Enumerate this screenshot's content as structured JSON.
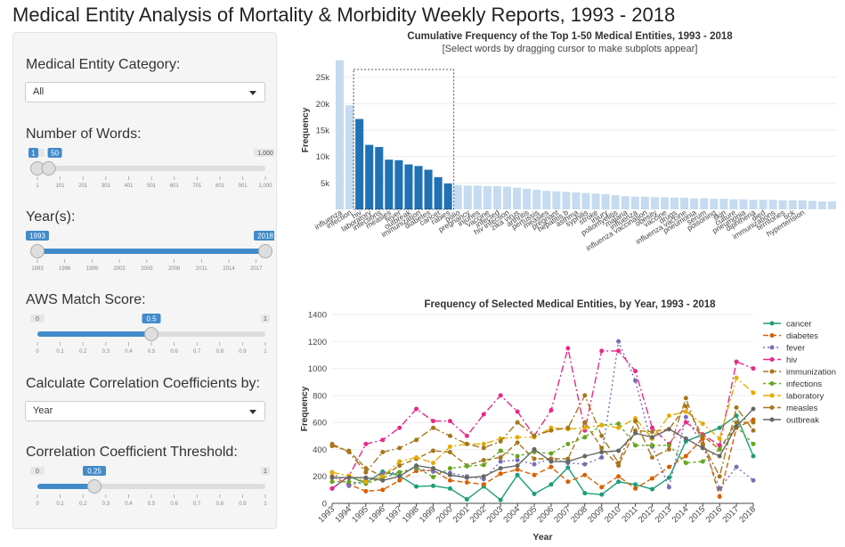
{
  "page_title": "Medical Entity Analysis of Mortality & Morbidity Weekly Reports, 1993 - 2018",
  "sidebar": {
    "category": {
      "label": "Medical Entity Category:",
      "value": "All"
    },
    "num_words": {
      "label": "Number of Words:",
      "min": 1,
      "max": 1000,
      "from": 1,
      "to": 50,
      "min_label": "1",
      "max_label": "1,000",
      "from_label": "1",
      "to_label": "50",
      "ticks": [
        "1",
        "101",
        "201",
        "301",
        "401",
        "501",
        "601",
        "701",
        "801",
        "901",
        "1,000"
      ]
    },
    "years": {
      "label": "Year(s):",
      "min": 1993,
      "max": 2018,
      "from": 1993,
      "to": 2018,
      "from_label": "1993",
      "to_label": "2018",
      "ticks": [
        "1993",
        "1996",
        "1999",
        "2002",
        "2005",
        "2008",
        "2011",
        "2014",
        "2017"
      ]
    },
    "aws": {
      "label": "AWS Match Score:",
      "min": 0,
      "max": 1,
      "value": 0.5,
      "min_label": "0",
      "max_label": "1",
      "value_label": "0.5",
      "ticks": [
        "0",
        "0.1",
        "0.2",
        "0.3",
        "0.4",
        "0.5",
        "0.6",
        "0.7",
        "0.8",
        "0.9",
        "1"
      ]
    },
    "corr_by": {
      "label": "Calculate Correlation Coefficients by:",
      "value": "Year"
    },
    "threshold": {
      "label": "Correlation Coefficient Threshold:",
      "min": 0,
      "max": 1,
      "value": 0.25,
      "min_label": "0",
      "max_label": "1",
      "value_label": "0.25",
      "ticks": [
        "0",
        "0.1",
        "0.2",
        "0.3",
        "0.4",
        "0.5",
        "0.6",
        "0.7",
        "0.8",
        "0.9",
        "1"
      ]
    },
    "colors": {
      "accent": "#428bca",
      "track": "#dddddd",
      "handle": "#dedede",
      "badge_gray": "#999999"
    }
  },
  "chart_data": [
    {
      "type": "bar",
      "title": "Cumulative Frequency of the Top 1-50 Medical Entities, 1993 - 2018",
      "subtitle": "[Select words by dragging cursor to make subplots appear]",
      "xlabel": "",
      "ylabel": "Frequency",
      "ylim": [
        0,
        30000
      ],
      "yticks": [
        5000,
        10000,
        15000,
        20000,
        25000
      ],
      "ytick_labels": [
        "5k",
        "10k",
        "15k",
        "20k",
        "25k"
      ],
      "colors": {
        "selected": "#2171b5",
        "unselected": "#c6dbef"
      },
      "selected_range": [
        2,
        11
      ],
      "categories": [
        "influenza",
        "infection",
        "hiv",
        "laboratory",
        "infections",
        "measles",
        "fever",
        "outbreak",
        "immunization",
        "diabetes",
        "cancer",
        "rabies",
        "polio",
        "pregnancy",
        "injuries",
        "vaccine",
        "infected",
        "hiv infection",
        "zika virus",
        "arthritis",
        "pertussis",
        "measles",
        "pregnant",
        "hepatitis b",
        "asthma",
        "syphilis",
        "stroke",
        "injury",
        "poliomyelitis",
        "malaria",
        "influenza",
        "influenza vaccination",
        "obesity",
        "vaccine",
        "drugs",
        "influenza vaccine",
        "pneumonia",
        "serum",
        "poisoning",
        "skin",
        "culture",
        "pneumonia",
        "diphtheria",
        "died",
        "immunizations",
        "territories",
        "tick",
        "hypertension",
        "",
        "",
        ""
      ],
      "values": [
        28200,
        19700,
        17100,
        12200,
        11800,
        9400,
        9300,
        8500,
        8200,
        7500,
        6100,
        4900,
        4600,
        4500,
        4500,
        4400,
        4400,
        4300,
        4100,
        3900,
        3700,
        3500,
        3400,
        3300,
        3200,
        3100,
        3000,
        2900,
        2700,
        2500,
        2400,
        2400,
        2300,
        2300,
        2200,
        2200,
        2100,
        2100,
        2000,
        2000,
        1900,
        1900,
        1800,
        1800,
        1800,
        1700,
        1700,
        1700,
        1600,
        1500,
        1500
      ]
    },
    {
      "type": "line",
      "title": "Frequency of Selected Medical Entities, by Year, 1993 - 2018",
      "xlabel": "Year",
      "ylabel": "Frequency",
      "xlim": [
        1993,
        2018
      ],
      "ylim": [
        0,
        1400
      ],
      "yticks": [
        0,
        200,
        400,
        600,
        800,
        1000,
        1200,
        1400
      ],
      "x": [
        1993,
        1994,
        1995,
        1996,
        1997,
        1998,
        1999,
        2000,
        2001,
        2002,
        2003,
        2004,
        2005,
        2006,
        2007,
        2008,
        2009,
        2010,
        2011,
        2012,
        2013,
        2014,
        2015,
        2016,
        2017,
        2018
      ],
      "series": [
        {
          "name": "cancer",
          "color": "#1b9e77",
          "dash": "",
          "values": [
            110,
            200,
            150,
            235,
            205,
            125,
            130,
            110,
            30,
            125,
            25,
            210,
            70,
            140,
            265,
            75,
            65,
            160,
            140,
            105,
            190,
            460,
            510,
            560,
            650,
            350
          ]
        },
        {
          "name": "diabetes",
          "color": "#d95f02",
          "dash": "6,3",
          "values": [
            200,
            140,
            90,
            100,
            170,
            240,
            245,
            170,
            155,
            140,
            220,
            250,
            210,
            270,
            160,
            210,
            120,
            200,
            110,
            185,
            270,
            350,
            480,
            50,
            560,
            620
          ]
        },
        {
          "name": "fever",
          "color": "#7570b3",
          "dash": "2,3",
          "values": [
            230,
            130,
            170,
            220,
            230,
            260,
            235,
            225,
            200,
            180,
            310,
            320,
            290,
            330,
            300,
            290,
            340,
            1200,
            910,
            420,
            120,
            640,
            430,
            110,
            270,
            170
          ]
        },
        {
          "name": "hiv",
          "color": "#e7298a",
          "dash": "8,3,2,3",
          "values": [
            110,
            200,
            440,
            470,
            560,
            700,
            610,
            610,
            500,
            660,
            800,
            680,
            500,
            690,
            1150,
            540,
            1130,
            1130,
            980,
            560,
            440,
            600,
            510,
            430,
            1050,
            1000
          ]
        },
        {
          "name": "immunization",
          "color": "#a6761d",
          "dash": "6,3",
          "values": [
            425,
            390,
            260,
            200,
            280,
            330,
            390,
            380,
            280,
            320,
            340,
            450,
            330,
            330,
            330,
            600,
            410,
            280,
            540,
            530,
            550,
            720,
            500,
            400,
            600,
            600
          ]
        },
        {
          "name": "infections",
          "color": "#66a61e",
          "dash": "3,3",
          "values": [
            160,
            160,
            145,
            190,
            230,
            265,
            195,
            260,
            275,
            285,
            390,
            350,
            380,
            370,
            440,
            490,
            580,
            590,
            430,
            430,
            430,
            300,
            310,
            400,
            570,
            440
          ]
        },
        {
          "name": "laboratory",
          "color": "#e6ab02",
          "dash": "8,3,2,3",
          "values": [
            230,
            205,
            160,
            200,
            310,
            340,
            300,
            420,
            440,
            440,
            480,
            490,
            490,
            560,
            550,
            560,
            580,
            560,
            630,
            480,
            650,
            680,
            590,
            480,
            930,
            820
          ]
        },
        {
          "name": "measles",
          "color": "#a6761d",
          "dash": "8,3,2,3",
          "values": [
            440,
            380,
            230,
            380,
            410,
            470,
            560,
            500,
            440,
            410,
            460,
            600,
            500,
            540,
            560,
            800,
            500,
            300,
            610,
            340,
            400,
            780,
            440,
            200,
            710,
            540
          ]
        },
        {
          "name": "outbreak",
          "color": "#666666",
          "dash": "",
          "values": [
            190,
            190,
            190,
            170,
            200,
            280,
            260,
            210,
            190,
            200,
            260,
            280,
            400,
            310,
            310,
            350,
            380,
            390,
            520,
            490,
            550,
            480,
            410,
            350,
            570,
            700
          ]
        }
      ]
    }
  ]
}
